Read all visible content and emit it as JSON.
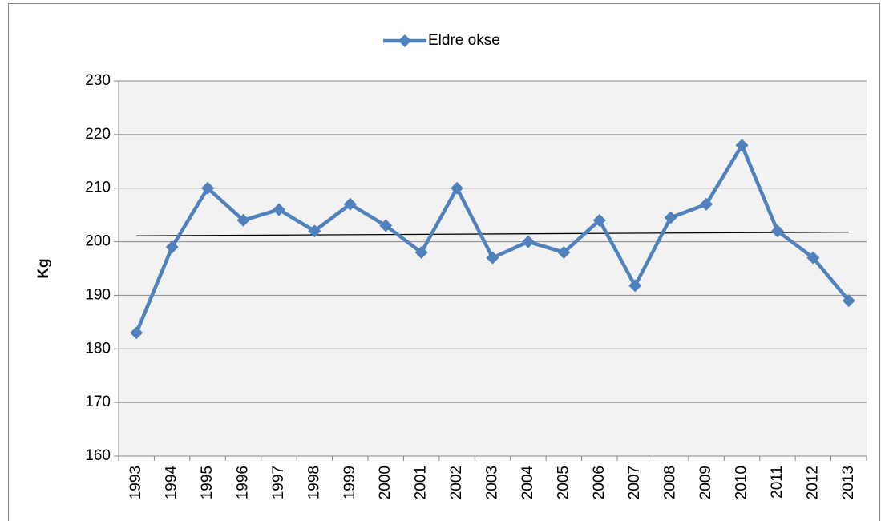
{
  "chart_data": {
    "type": "line",
    "y_label": "Kg",
    "categories": [
      "1993",
      "1994",
      "1995",
      "1996",
      "1997",
      "1998",
      "1999",
      "2000",
      "2001",
      "2002",
      "2003",
      "2004",
      "2005",
      "2006",
      "2007",
      "2008",
      "2009",
      "2010",
      "2011",
      "2012",
      "2013"
    ],
    "series": [
      {
        "name": "Eldre okse",
        "color": "#4f81bd",
        "values": [
          183,
          199,
          210,
          204,
          206,
          202,
          207,
          203,
          198,
          210,
          197,
          200,
          198,
          204,
          191.8,
          204.5,
          207,
          218,
          202,
          197,
          189
        ]
      }
    ],
    "ylim": [
      160,
      230
    ],
    "yticks": [
      160,
      170,
      180,
      190,
      200,
      210,
      220,
      230
    ],
    "grid": true,
    "trendline": true,
    "legend": "top"
  }
}
